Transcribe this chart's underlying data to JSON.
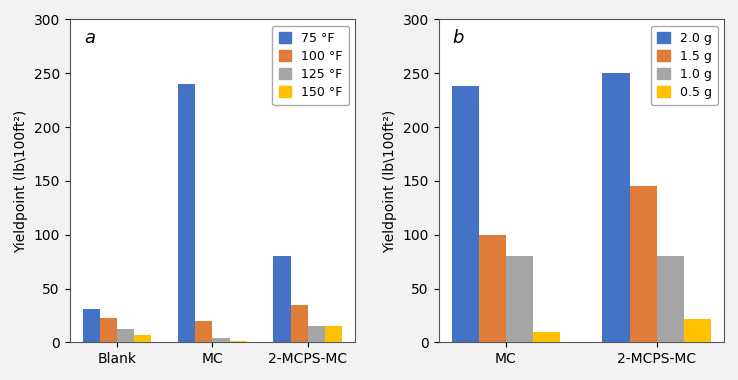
{
  "chart_a": {
    "categories": [
      "Blank",
      "MC",
      "2-MCPS-MC"
    ],
    "series_labels": [
      "75 °F",
      "100 °F",
      "125 °F",
      "150 °F"
    ],
    "colors": [
      "#4472C4",
      "#E07B39",
      "#A5A5A5",
      "#FFC000"
    ],
    "values": [
      [
        31,
        240,
        80
      ],
      [
        23,
        20,
        35
      ],
      [
        12,
        4,
        15
      ],
      [
        7,
        1,
        15
      ]
    ],
    "ylabel": "Yieldpoint (lb\\100ft²)",
    "ylim": [
      0,
      300
    ],
    "yticks": [
      0,
      50,
      100,
      150,
      200,
      250,
      300
    ],
    "panel_label": "a"
  },
  "chart_b": {
    "categories": [
      "MC",
      "2-MCPS-MC"
    ],
    "series_labels": [
      "2.0 g",
      "1.5 g",
      "1.0 g",
      "0.5 g"
    ],
    "colors": [
      "#4472C4",
      "#E07B39",
      "#A5A5A5",
      "#FFC000"
    ],
    "values": [
      [
        238,
        250
      ],
      [
        100,
        145
      ],
      [
        80,
        80
      ],
      [
        10,
        22
      ]
    ],
    "ylabel": "Yieldpoint (lb\\100ft²)",
    "ylim": [
      0,
      300
    ],
    "yticks": [
      0,
      50,
      100,
      150,
      200,
      250,
      300
    ],
    "panel_label": "b"
  },
  "bar_width": 0.18,
  "figsize": [
    7.38,
    3.8
  ],
  "dpi": 100,
  "bg_color": "#f0f0f0"
}
